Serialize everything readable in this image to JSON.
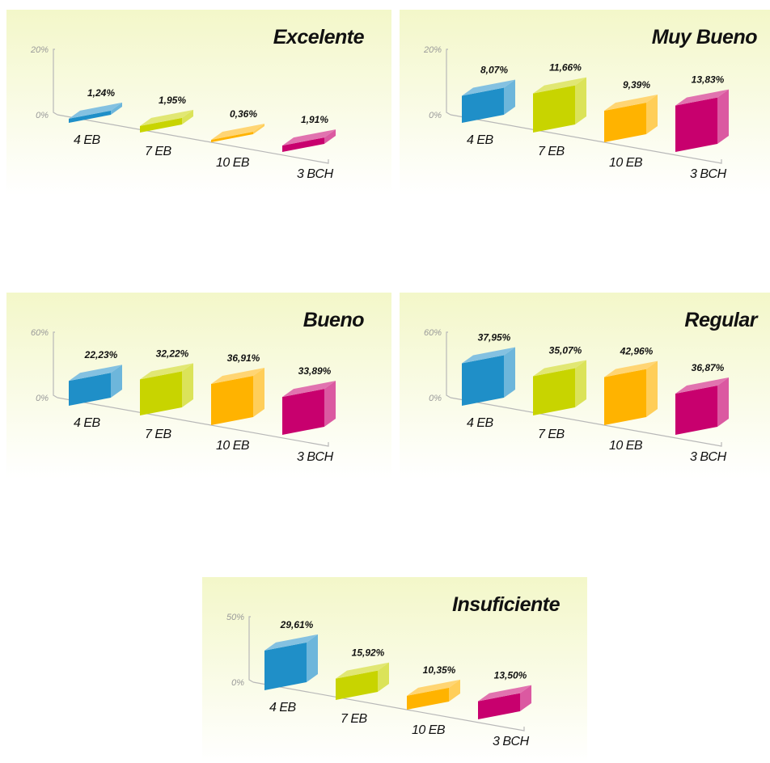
{
  "colors": {
    "bar_colors": [
      "#1f8fc8",
      "#c8d400",
      "#ffb300",
      "#c8006e"
    ],
    "panel_background_top": "#f3f7c9",
    "panel_background_bottom": "#ffffff"
  },
  "chart_data": [
    {
      "type": "bar",
      "title": "Excelente",
      "categories": [
        "4 EB",
        "7 EB",
        "10 EB",
        "3 BCH"
      ],
      "values": [
        1.24,
        1.95,
        0.36,
        1.91
      ],
      "value_labels": [
        "1,24%",
        "1,95%",
        "0,36%",
        "1,91%"
      ],
      "ylim": [
        0,
        20
      ],
      "yticks": [
        "0%",
        "20%"
      ],
      "grid": false
    },
    {
      "type": "bar",
      "title": "Muy Bueno",
      "categories": [
        "4 EB",
        "7 EB",
        "10 EB",
        "3 BCH"
      ],
      "values": [
        8.07,
        11.66,
        9.39,
        13.83
      ],
      "value_labels": [
        "8,07%",
        "11,66%",
        "9,39%",
        "13,83%"
      ],
      "ylim": [
        0,
        20
      ],
      "yticks": [
        "0%",
        "20%"
      ],
      "grid": false
    },
    {
      "type": "bar",
      "title": "Bueno",
      "categories": [
        "4 EB",
        "7 EB",
        "10 EB",
        "3 BCH"
      ],
      "values": [
        22.23,
        32.22,
        36.91,
        33.89
      ],
      "value_labels": [
        "22,23%",
        "32,22%",
        "36,91%",
        "33,89%"
      ],
      "ylim": [
        0,
        60
      ],
      "yticks": [
        "0%",
        "60%"
      ],
      "grid": false
    },
    {
      "type": "bar",
      "title": "Regular",
      "categories": [
        "4 EB",
        "7 EB",
        "10 EB",
        "3 BCH"
      ],
      "values": [
        37.95,
        35.07,
        42.96,
        36.87
      ],
      "value_labels": [
        "37,95%",
        "35,07%",
        "42,96%",
        "36,87%"
      ],
      "ylim": [
        0,
        60
      ],
      "yticks": [
        "0%",
        "60%"
      ],
      "grid": false
    },
    {
      "type": "bar",
      "title": "Insuficiente",
      "categories": [
        "4 EB",
        "7 EB",
        "10 EB",
        "3 BCH"
      ],
      "values": [
        29.61,
        15.92,
        10.35,
        13.5
      ],
      "value_labels": [
        "29,61%",
        "15,92%",
        "10,35%",
        "13,50%"
      ],
      "ylim": [
        0,
        50
      ],
      "yticks": [
        "0%",
        "50%"
      ],
      "grid": false
    }
  ]
}
